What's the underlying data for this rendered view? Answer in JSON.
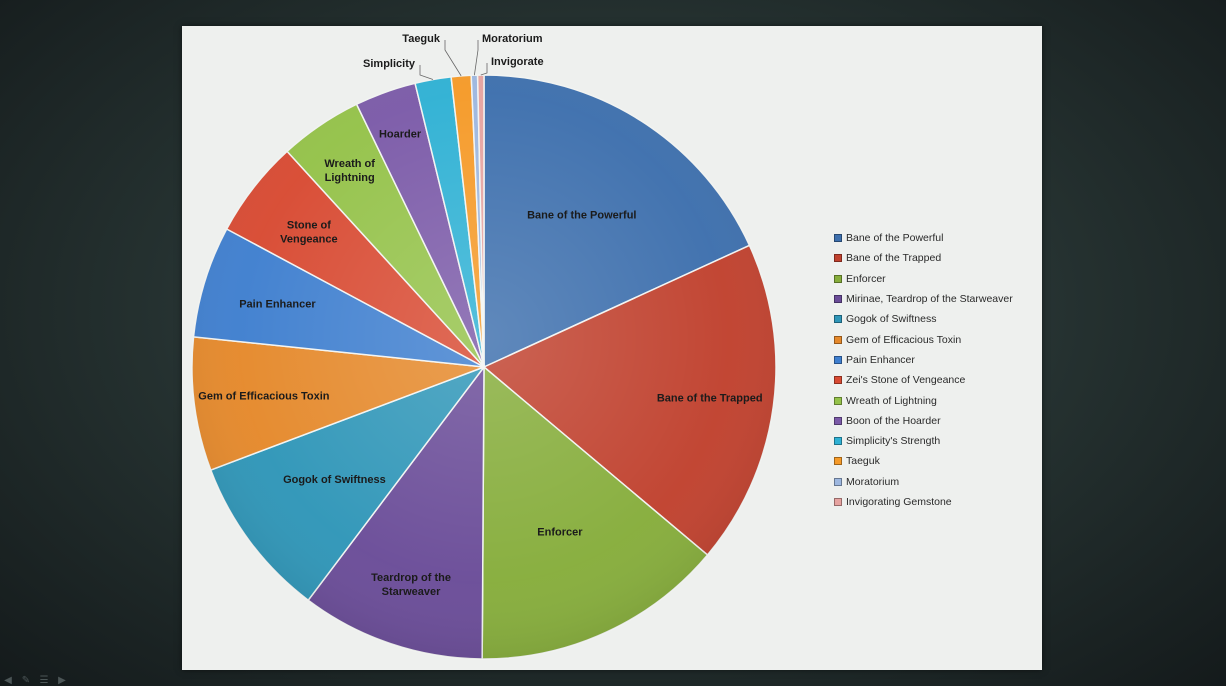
{
  "chart_data": {
    "type": "pie",
    "title": "",
    "legend_position": "right",
    "slices": [
      {
        "label": "Bane of the Powerful",
        "short_label": "Bane of the Powerful",
        "value": 18.2,
        "color": "#3d6fad"
      },
      {
        "label": "Bane of the Trapped",
        "short_label": "Bane of the Trapped",
        "value": 18.0,
        "color": "#c0412e"
      },
      {
        "label": "Enforcer",
        "short_label": "Enforcer",
        "value": 14.0,
        "color": "#86ad3b"
      },
      {
        "label": "Mirinae, Teardrop of the Starweaver",
        "short_label": "Teardrop of the Starweaver",
        "value": 10.2,
        "color": "#6a4c98"
      },
      {
        "label": "Gogok of Swiftness",
        "short_label": "Gogok of Swiftness",
        "value": 9.0,
        "color": "#2f96b8"
      },
      {
        "label": "Gem of Efficacious Toxin",
        "short_label": "Gem of Efficacious Toxin",
        "value": 7.4,
        "color": "#e5892b"
      },
      {
        "label": "Pain Enhancer",
        "short_label": "Pain Enhancer",
        "value": 6.2,
        "color": "#3f7fcf"
      },
      {
        "label": "Zei's Stone of Vengeance",
        "short_label": "Stone of Vengeance",
        "value": 5.4,
        "color": "#d84a32"
      },
      {
        "label": "Wreath of Lightning",
        "short_label": "Wreath of Lightning",
        "value": 4.6,
        "color": "#94c249"
      },
      {
        "label": "Boon of the Hoarder",
        "short_label": "Hoarder",
        "value": 3.4,
        "color": "#7b5aa8"
      },
      {
        "label": "Simplicity's Strength",
        "short_label": "Simplicity",
        "value": 2.0,
        "color": "#2fb1d4"
      },
      {
        "label": "Taeguk",
        "short_label": "Taeguk",
        "value": 1.1,
        "color": "#f59a28"
      },
      {
        "label": "Moratorium",
        "short_label": "Moratorium",
        "value": 0.35,
        "color": "#9db7df"
      },
      {
        "label": "Invigorating Gemstone",
        "short_label": "Invigorate",
        "value": 0.35,
        "color": "#e6a3a0"
      }
    ]
  }
}
